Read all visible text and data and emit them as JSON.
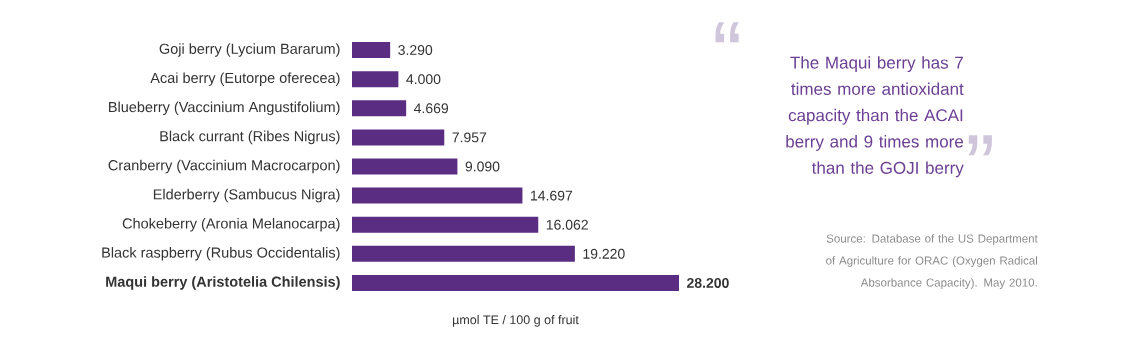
{
  "chart_data": {
    "type": "bar",
    "orientation": "horizontal",
    "xlabel": "µmol TE / 100 g of fruit",
    "categories": [
      "Goji berry (Lycium Bararum)",
      "Acai berry  (Eutorpe oferecea)",
      "Blueberry  (Vaccinium Angustifolium)",
      "Black currant  (Ribes Nigrus)",
      "Cranberry (Vaccinium Macrocarpon)",
      "Elderberry (Sambucus Nigra)",
      "Chokeberry (Aronia Melanocarpa)",
      "Black raspberry  (Rubus Occidentalis)",
      "**Maqui berry  (Aristotelia Chilensis)**"
    ],
    "values": [
      3290,
      4000,
      4669,
      7957,
      9090,
      14697,
      16062,
      19220,
      28200
    ],
    "value_labels": [
      "3.290",
      "4.000",
      "4.669",
      "7.957",
      "9.090",
      "14.697",
      "16.062",
      "19.220",
      "**28.200**"
    ],
    "color": "#5a2d82",
    "annotations": [
      "“",
      "The Maqui berry has 7 times more antioxidant capacity than the ACAI berry and 9 times more than the GOJI berry",
      "”",
      "Source: Database of the US Department of Agriculture for ORAC (Oxygen Radical Absorbance Capacity). May 2010."
    ]
  }
}
